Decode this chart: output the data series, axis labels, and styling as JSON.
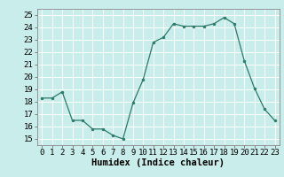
{
  "x": [
    0,
    1,
    2,
    3,
    4,
    5,
    6,
    7,
    8,
    9,
    10,
    11,
    12,
    13,
    14,
    15,
    16,
    17,
    18,
    19,
    20,
    21,
    22,
    23
  ],
  "y": [
    18.3,
    18.3,
    18.8,
    16.5,
    16.5,
    15.8,
    15.8,
    15.3,
    15.0,
    17.9,
    19.8,
    22.8,
    23.2,
    24.3,
    24.1,
    24.1,
    24.1,
    24.3,
    24.8,
    24.3,
    21.3,
    19.1,
    17.4,
    16.5
  ],
  "xlabel": "Humidex (Indice chaleur)",
  "ylim": [
    14.5,
    25.5
  ],
  "yticks": [
    15,
    16,
    17,
    18,
    19,
    20,
    21,
    22,
    23,
    24,
    25
  ],
  "xticks": [
    0,
    1,
    2,
    3,
    4,
    5,
    6,
    7,
    8,
    9,
    10,
    11,
    12,
    13,
    14,
    15,
    16,
    17,
    18,
    19,
    20,
    21,
    22,
    23
  ],
  "line_color": "#2d7a6a",
  "marker_color": "#2d7a6a",
  "bg_color": "#c8edea",
  "grid_color": "#aad6d0",
  "tick_label_fontsize": 6.5,
  "xlabel_fontsize": 7.5
}
